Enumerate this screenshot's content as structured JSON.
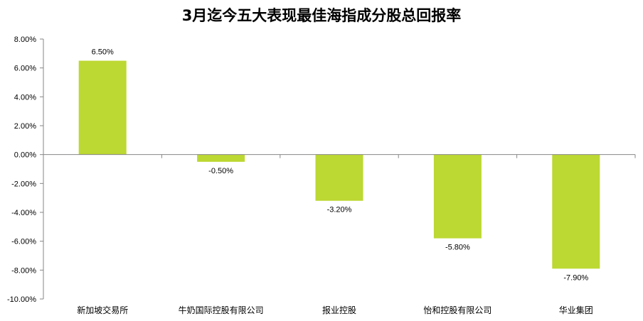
{
  "chart_data": {
    "type": "bar",
    "title": "3月迄今五大表现最佳海指成分股总回报率",
    "xlabel": "",
    "ylabel": "",
    "categories": [
      "新加坡交易所",
      "牛奶国际控股有限公司",
      "报业控股",
      "怡和控股有限公司",
      "华业集团"
    ],
    "values": [
      6.5,
      -0.5,
      -3.2,
      -5.8,
      -7.9
    ],
    "data_labels": [
      "6.50%",
      "-0.50%",
      "-3.20%",
      "-5.80%",
      "-7.90%"
    ],
    "ylim": [
      -10,
      8
    ],
    "yticks": [
      8,
      6,
      4,
      2,
      0,
      -2,
      -4,
      -6,
      -8,
      -10
    ],
    "ytick_labels": [
      "8.00%",
      "6.00%",
      "4.00%",
      "2.00%",
      "0.00%",
      "-2.00%",
      "-4.00%",
      "-6.00%",
      "-8.00%",
      "-10.00%"
    ],
    "grid": false,
    "legend": "none",
    "bar_color": "#BCD832"
  }
}
